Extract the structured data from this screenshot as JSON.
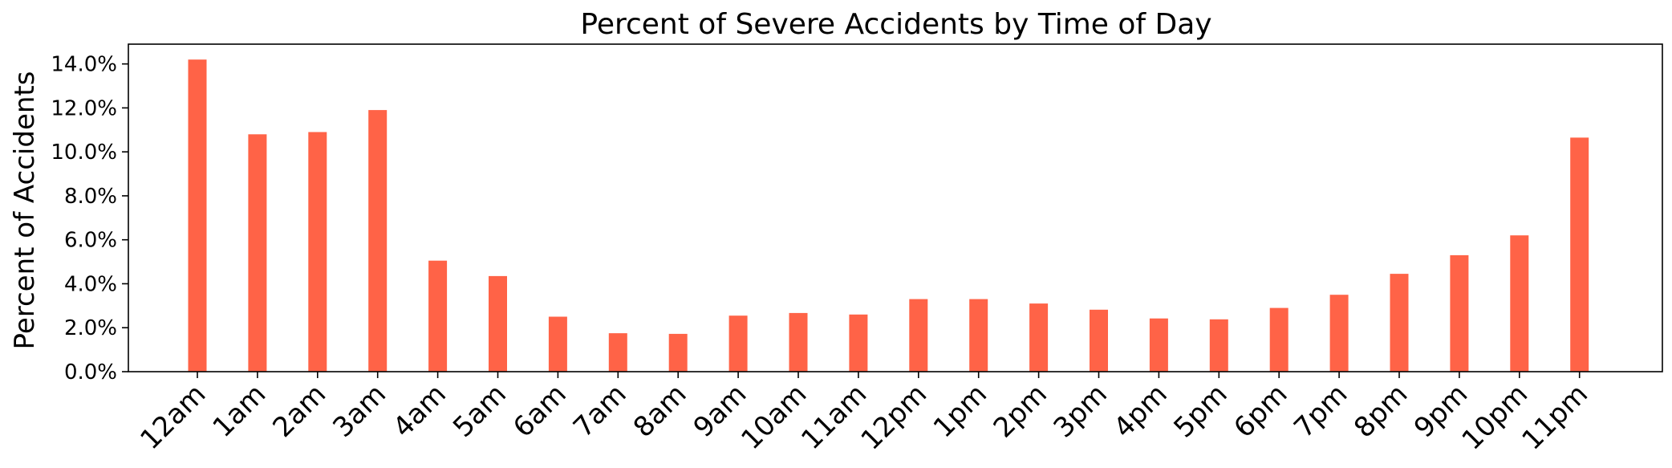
{
  "chart_data": {
    "type": "bar",
    "title": "Percent of Severe Accidents by Time of Day",
    "ylabel": "Percent of Accidents",
    "xlabel": "",
    "categories": [
      "12am",
      "1am",
      "2am",
      "3am",
      "4am",
      "5am",
      "6am",
      "7am",
      "8am",
      "9am",
      "10am",
      "11am",
      "12pm",
      "1pm",
      "2pm",
      "3pm",
      "4pm",
      "5pm",
      "6pm",
      "7pm",
      "8pm",
      "9pm",
      "10pm",
      "11pm"
    ],
    "values": [
      14.2,
      10.8,
      10.9,
      11.9,
      5.05,
      4.35,
      2.5,
      1.75,
      1.72,
      2.55,
      2.67,
      2.6,
      3.3,
      3.3,
      3.1,
      2.82,
      2.42,
      2.38,
      2.9,
      3.5,
      4.45,
      5.3,
      6.2,
      10.65
    ],
    "yticks": [
      "0.0%",
      "2.0%",
      "4.0%",
      "6.0%",
      "8.0%",
      "10.0%",
      "12.0%",
      "14.0%"
    ],
    "ytick_values": [
      0,
      2,
      4,
      6,
      8,
      10,
      12,
      14
    ],
    "ylim": [
      0,
      14.9
    ],
    "grid": false,
    "bar_color": "#ff6347"
  }
}
